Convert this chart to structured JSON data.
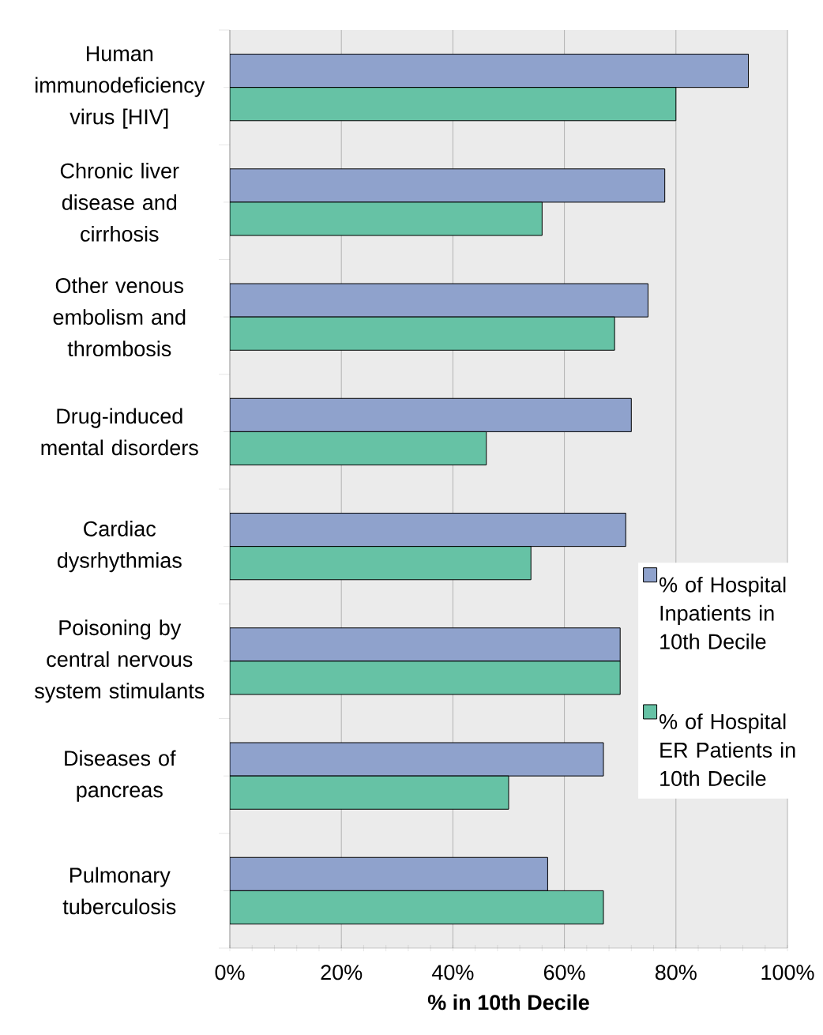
{
  "chart_data": {
    "type": "bar",
    "orientation": "horizontal",
    "xlabel": "% in 10th Decile",
    "categories": [
      "Human immunodeficiency virus [HIV]",
      "Chronic liver disease and cirrhosis",
      "Other venous embolism and thrombosis",
      "Drug-induced mental disorders",
      "Cardiac dysrhythmias",
      "Poisoning by central nervous system stimulants",
      "Diseases of pancreas",
      "Pulmonary tuberculosis"
    ],
    "series": [
      {
        "name": "% of Hospital Inpatients in 10th Decile",
        "color": "#8fa2cc",
        "values": [
          93,
          78,
          75,
          72,
          71,
          70,
          67,
          57
        ]
      },
      {
        "name": "% of Hospital ER Patients in 10th Decile",
        "color": "#66c2a5",
        "values": [
          80,
          56,
          69,
          46,
          54,
          70,
          50,
          67
        ]
      }
    ],
    "xlim": [
      0,
      100
    ],
    "xticks": [
      {
        "value": 0,
        "label": "0%"
      },
      {
        "value": 20,
        "label": "20%"
      },
      {
        "value": 40,
        "label": "40%"
      },
      {
        "value": 60,
        "label": "60%"
      },
      {
        "value": 80,
        "label": "80%"
      },
      {
        "value": 100,
        "label": "100%"
      }
    ],
    "grid": "x",
    "legend": "right"
  }
}
